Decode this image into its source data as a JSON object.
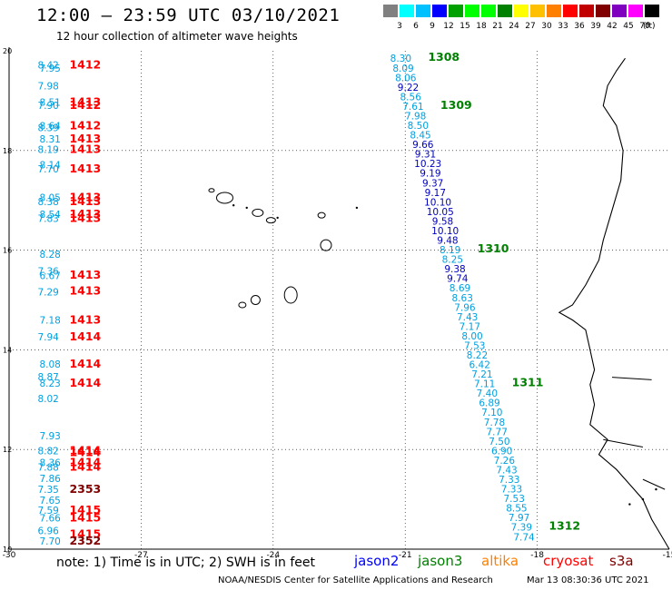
{
  "header": {
    "title": "12:00 – 23:59 UTC 03/10/2021",
    "subtitle": "12 hour collection of altimeter wave heights"
  },
  "legend": {
    "colors": [
      "#808080",
      "#00ffff",
      "#00c0ff",
      "#0000ff",
      "#00a000",
      "#00ff00",
      "#00ff00",
      "#008000",
      "#ffff00",
      "#ffc000",
      "#ff8000",
      "#ff0000",
      "#c00000",
      "#800000",
      "#8000c0",
      "#ff00ff",
      "#000000"
    ],
    "labels": [
      "3",
      "6",
      "9",
      "12",
      "15",
      "18",
      "21",
      "24",
      "27",
      "30",
      "33",
      "36",
      "39",
      "42",
      "45",
      "70"
    ],
    "unit": "(ft)"
  },
  "axes": {
    "x_ticks": [
      "-30",
      "-27",
      "-24",
      "-21",
      "-18",
      "-15"
    ],
    "y_ticks": [
      "20",
      "18",
      "16",
      "14",
      "12",
      "10"
    ]
  },
  "map": {
    "lon_range": [
      -30,
      -15
    ],
    "lat_range": [
      10,
      20
    ],
    "grid": true
  },
  "left_track_values": [
    {
      "v": "8.42",
      "lat": 19.72,
      "lon": -29.0
    },
    {
      "v": "7.95",
      "lat": 19.65,
      "lon": -29.0
    },
    {
      "v": "7.98",
      "lat": 19.3,
      "lon": -29.0
    },
    {
      "v": "8.51",
      "lat": 18.97,
      "lon": -29.0
    },
    {
      "v": "7.90",
      "lat": 18.91,
      "lon": -29.0
    },
    {
      "v": "8.64",
      "lat": 18.5,
      "lon": -29.0
    },
    {
      "v": "8.39",
      "lat": 18.46,
      "lon": -29.0
    },
    {
      "v": "8.31",
      "lat": 18.23,
      "lon": -29.0
    },
    {
      "v": "8.19",
      "lat": 18.02,
      "lon": -29.0
    },
    {
      "v": "8.14",
      "lat": 17.71,
      "lon": -29.0
    },
    {
      "v": "7.70",
      "lat": 17.63,
      "lon": -29.0
    },
    {
      "v": "8.05",
      "lat": 17.06,
      "lon": -29.0
    },
    {
      "v": "8.38",
      "lat": 16.98,
      "lon": -29.0
    },
    {
      "v": "8.54",
      "lat": 16.72,
      "lon": -29.0
    },
    {
      "v": "7.83",
      "lat": 16.64,
      "lon": -29.0
    },
    {
      "v": "8.28",
      "lat": 15.92,
      "lon": -29.0
    },
    {
      "v": "7.36",
      "lat": 15.58,
      "lon": -29.0
    },
    {
      "v": "6.67",
      "lat": 15.49,
      "lon": -29.0
    },
    {
      "v": "7.29",
      "lat": 15.16,
      "lon": -29.0
    },
    {
      "v": "7.18",
      "lat": 14.6,
      "lon": -29.0
    },
    {
      "v": "7.94",
      "lat": 14.26,
      "lon": -29.0
    },
    {
      "v": "8.08",
      "lat": 13.72,
      "lon": -29.0
    },
    {
      "v": "8.87",
      "lat": 13.46,
      "lon": -29.0
    },
    {
      "v": "8.23",
      "lat": 13.33,
      "lon": -29.0
    },
    {
      "v": "8.02",
      "lat": 13.02,
      "lon": -29.0
    },
    {
      "v": "7.93",
      "lat": 12.28,
      "lon": -29.0
    },
    {
      "v": "8.82",
      "lat": 11.98,
      "lon": -29.0
    },
    {
      "v": "8.36",
      "lat": 11.74,
      "lon": -29.0
    },
    {
      "v": "7.88",
      "lat": 11.65,
      "lon": -29.0
    },
    {
      "v": "7.86",
      "lat": 11.42,
      "lon": -29.0
    },
    {
      "v": "7.35",
      "lat": 11.2,
      "lon": -29.0
    },
    {
      "v": "7.65",
      "lat": 10.98,
      "lon": -29.0
    },
    {
      "v": "7.59",
      "lat": 10.78,
      "lon": -29.0
    },
    {
      "v": "7.66",
      "lat": 10.63,
      "lon": -29.0
    },
    {
      "v": "6.96",
      "lat": 10.37,
      "lon": -29.0
    },
    {
      "v": "7.70",
      "lat": 10.16,
      "lon": -29.0
    }
  ],
  "left_track_labels": [
    {
      "t": "1412",
      "lat": 19.72
    },
    {
      "t": "1413",
      "lat": 18.97
    },
    {
      "t": "1412",
      "lat": 18.91
    },
    {
      "t": "1412",
      "lat": 18.5
    },
    {
      "t": "1413",
      "lat": 18.23
    },
    {
      "t": "1413",
      "lat": 18.02
    },
    {
      "t": "1413",
      "lat": 17.63
    },
    {
      "t": "1413",
      "lat": 17.06
    },
    {
      "t": "1413",
      "lat": 16.98
    },
    {
      "t": "1413",
      "lat": 16.72
    },
    {
      "t": "1413",
      "lat": 16.64
    },
    {
      "t": "1413",
      "lat": 15.5
    },
    {
      "t": "1413",
      "lat": 15.18
    },
    {
      "t": "1413",
      "lat": 14.6
    },
    {
      "t": "1414",
      "lat": 14.26
    },
    {
      "t": "1414",
      "lat": 13.72
    },
    {
      "t": "1414",
      "lat": 13.33
    },
    {
      "t": "1414",
      "lat": 11.98
    },
    {
      "t": "1414",
      "lat": 11.94
    },
    {
      "t": "1414",
      "lat": 11.74
    },
    {
      "t": "1414",
      "lat": 11.65
    },
    {
      "t": "2353",
      "lat": 11.2
    },
    {
      "t": "1415",
      "lat": 10.78
    },
    {
      "t": "1415",
      "lat": 10.63
    },
    {
      "t": "1415",
      "lat": 10.3
    },
    {
      "t": "2352",
      "lat": 10.16
    }
  ],
  "right_track_values": [
    {
      "v": "8.30",
      "c": "#00a0e0"
    },
    {
      "v": "8.09",
      "c": "#00a0e0"
    },
    {
      "v": "8.06",
      "c": "#00a0e0"
    },
    {
      "v": "9.22",
      "c": "#0000c0"
    },
    {
      "v": "8.56",
      "c": "#00a0e0"
    },
    {
      "v": "7.61",
      "c": "#00a0e0"
    },
    {
      "v": "7.98",
      "c": "#00a0e0"
    },
    {
      "v": "8.50",
      "c": "#00a0e0"
    },
    {
      "v": "8.45",
      "c": "#00a0e0"
    },
    {
      "v": "9.66",
      "c": "#0000c0"
    },
    {
      "v": "9.31",
      "c": "#0000c0"
    },
    {
      "v": "10.23",
      "c": "#0000c0"
    },
    {
      "v": "9.19",
      "c": "#0000c0"
    },
    {
      "v": "9.37",
      "c": "#0000c0"
    },
    {
      "v": "9.17",
      "c": "#0000c0"
    },
    {
      "v": "10.10",
      "c": "#0000c0"
    },
    {
      "v": "10.05",
      "c": "#0000c0"
    },
    {
      "v": "9.58",
      "c": "#0000c0"
    },
    {
      "v": "10.10",
      "c": "#0000c0"
    },
    {
      "v": "9.48",
      "c": "#0000c0"
    },
    {
      "v": "8.19",
      "c": "#00a0e0"
    },
    {
      "v": "8.25",
      "c": "#00a0e0"
    },
    {
      "v": "9.38",
      "c": "#0000c0"
    },
    {
      "v": "9.74",
      "c": "#0000c0"
    },
    {
      "v": "8.69",
      "c": "#00a0e0"
    },
    {
      "v": "8.63",
      "c": "#00a0e0"
    },
    {
      "v": "7.96",
      "c": "#00a0e0"
    },
    {
      "v": "7.43",
      "c": "#00a0e0"
    },
    {
      "v": "7.17",
      "c": "#00a0e0"
    },
    {
      "v": "8.00",
      "c": "#00a0e0"
    },
    {
      "v": "7.53",
      "c": "#00a0e0"
    },
    {
      "v": "8.22",
      "c": "#00a0e0"
    },
    {
      "v": "6.42",
      "c": "#00a0e0"
    },
    {
      "v": "7.21",
      "c": "#00a0e0"
    },
    {
      "v": "7.11",
      "c": "#00a0e0"
    },
    {
      "v": "7.40",
      "c": "#00a0e0"
    },
    {
      "v": "6.89",
      "c": "#00a0e0"
    },
    {
      "v": "7.10",
      "c": "#00a0e0"
    },
    {
      "v": "7.78",
      "c": "#00a0e0"
    },
    {
      "v": "7.77",
      "c": "#00a0e0"
    },
    {
      "v": "7.50",
      "c": "#00a0e0"
    },
    {
      "v": "6.90",
      "c": "#00a0e0"
    },
    {
      "v": "7.26",
      "c": "#00a0e0"
    },
    {
      "v": "7.43",
      "c": "#00a0e0"
    },
    {
      "v": "7.33",
      "c": "#00a0e0"
    },
    {
      "v": "7.33",
      "c": "#00a0e0"
    },
    {
      "v": "7.53",
      "c": "#00a0e0"
    },
    {
      "v": "8.55",
      "c": "#00a0e0"
    },
    {
      "v": "7.97",
      "c": "#00a0e0"
    },
    {
      "v": "7.39",
      "c": "#00a0e0"
    },
    {
      "v": "7.74",
      "c": "#00a0e0"
    }
  ],
  "right_track_labels": [
    {
      "t": "1308",
      "idx": 0
    },
    {
      "t": "1309",
      "idx": 5
    },
    {
      "t": "1310",
      "idx": 20
    },
    {
      "t": "1311",
      "idx": 34
    },
    {
      "t": "1312",
      "idx": 49
    }
  ],
  "notes": {
    "note": "note: 1) Time is in UTC; 2) SWH is in feet",
    "satellites": [
      {
        "name": "jason2",
        "color": "#0000ff"
      },
      {
        "name": "jason3",
        "color": "#008000"
      },
      {
        "name": "altika",
        "color": "#ff8000"
      },
      {
        "name": "cryosat",
        "color": "#ff0000"
      },
      {
        "name": "s3a",
        "color": "#800000"
      }
    ],
    "credit": "NOAA/NESDIS Center for Satellite Applications and Research",
    "timestamp": "Mar 13 08:30:36 UTC 2021"
  }
}
